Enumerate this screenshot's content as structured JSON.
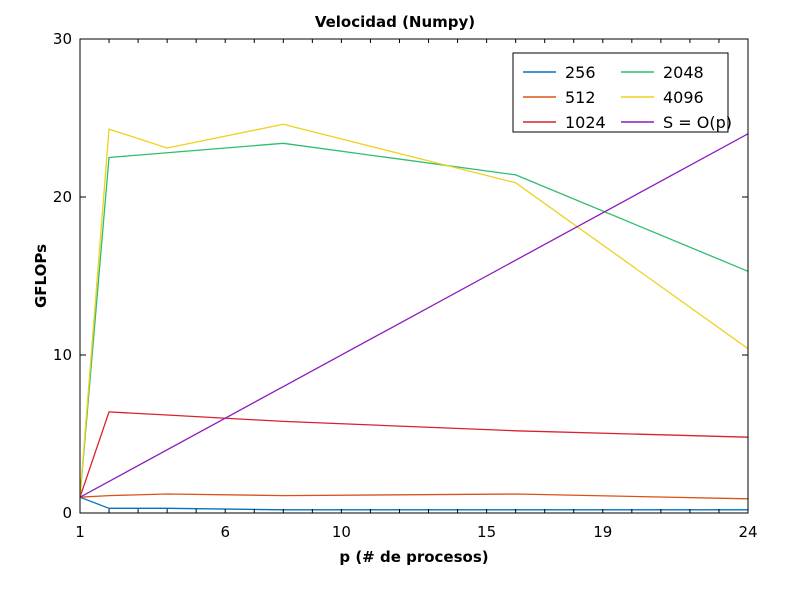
{
  "chart_data": {
    "type": "line",
    "title": "Velocidad (Numpy)",
    "xlabel": "p (# de procesos)",
    "ylabel": "GFLOPs",
    "xlim": [
      1,
      24
    ],
    "ylim": [
      0,
      30
    ],
    "x_ticks": [
      1,
      6,
      10,
      15,
      19,
      24
    ],
    "y_ticks": [
      0,
      10,
      20,
      30
    ],
    "grid": false,
    "legend_position": "top-right",
    "legend_columns": 2,
    "series": [
      {
        "name": "256",
        "color": "#0072BD",
        "x": [
          1,
          2,
          4,
          8,
          16,
          24
        ],
        "y": [
          1.0,
          0.3,
          0.3,
          0.2,
          0.2,
          0.2
        ]
      },
      {
        "name": "512",
        "color": "#D95319",
        "x": [
          1,
          2,
          4,
          8,
          16,
          24
        ],
        "y": [
          1.0,
          1.1,
          1.2,
          1.1,
          1.2,
          0.9
        ]
      },
      {
        "name": "1024",
        "color": "#D9212E",
        "x": [
          1,
          2,
          4,
          8,
          16,
          24
        ],
        "y": [
          1.0,
          6.4,
          6.2,
          5.8,
          5.2,
          4.8
        ]
      },
      {
        "name": "2048",
        "color": "#2DBE6E",
        "x": [
          1,
          2,
          8,
          16,
          24
        ],
        "y": [
          1.0,
          22.5,
          23.4,
          21.4,
          15.3
        ]
      },
      {
        "name": "4096",
        "color": "#EDD21F",
        "x": [
          1,
          2,
          4,
          8,
          16,
          24
        ],
        "y": [
          1.0,
          24.3,
          23.1,
          24.6,
          20.9,
          10.4
        ]
      },
      {
        "name": "S = O(p)",
        "color": "#8E1BBE",
        "x": [
          1,
          24
        ],
        "y": [
          1.0,
          24.0
        ]
      }
    ]
  }
}
